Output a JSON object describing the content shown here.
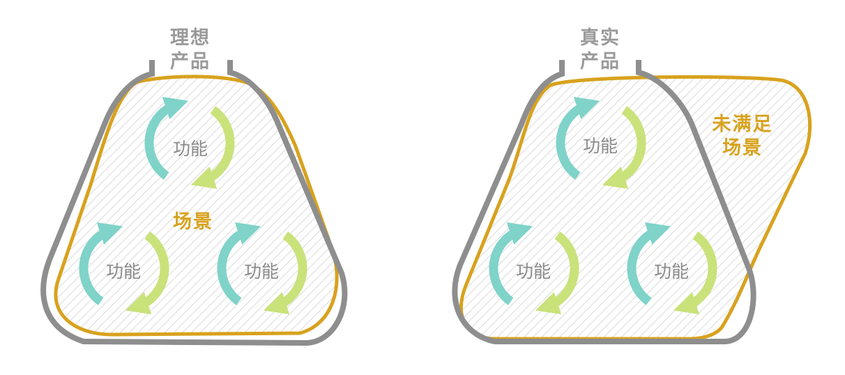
{
  "left": {
    "product_title_line1": "理想",
    "product_title_line2": "产品",
    "scene_label": "场景",
    "functions": [
      "功能",
      "功能",
      "功能"
    ]
  },
  "right": {
    "product_title_line1": "真实",
    "product_title_line2": "产品",
    "unmet_line1": "未满足",
    "unmet_line2": "场景",
    "functions": [
      "功能",
      "功能",
      "功能"
    ]
  },
  "colors": {
    "product_outline": "#8e8e8e",
    "scene_outline": "#d8a21e",
    "arrow_teal": "#7fd3c9",
    "arrow_green": "#c9e27a",
    "hatch": "#d9d9d9"
  }
}
